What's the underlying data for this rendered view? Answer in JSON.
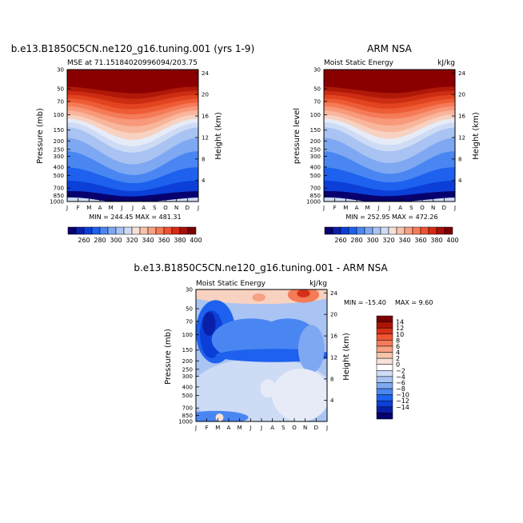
{
  "chart_data": [
    {
      "type": "heatmap",
      "title": "b.e13.B1850C5CN.ne120_g16.tuning.001 (yrs 1-9)",
      "subtitle_left": "MSE at 71.15184020996094/203.75",
      "ylabel": "Pressure (mb)",
      "ylabel_right": "Height (km)",
      "x_ticks": [
        "J",
        "F",
        "M",
        "A",
        "M",
        "J",
        "J",
        "A",
        "S",
        "O",
        "N",
        "D",
        "J"
      ],
      "p_ticks": [
        "30",
        "50",
        "70",
        "100",
        "150",
        "200",
        "250",
        "300",
        "400",
        "500",
        "700",
        "850",
        "1000"
      ],
      "p_values": [
        30,
        50,
        70,
        100,
        150,
        200,
        250,
        300,
        400,
        500,
        700,
        850,
        1000
      ],
      "km_ticks": [
        "24",
        "20",
        "16",
        "12",
        "8",
        "4"
      ],
      "km_values": [
        24,
        20,
        16,
        12,
        8,
        4
      ],
      "stats": "MIN = 244.45   MAX = 481.31",
      "min": 244.45,
      "max": 481.31
    },
    {
      "type": "heatmap",
      "title": "ARM NSA",
      "subtitle_left": "Moist Static Energy",
      "subtitle_right": "kJ/kg",
      "ylabel": "pressure  level",
      "ylabel_right": "Height (km)",
      "x_ticks": [
        "J",
        "F",
        "M",
        "A",
        "M",
        "J",
        "J",
        "A",
        "S",
        "O",
        "N",
        "D",
        "J"
      ],
      "p_ticks": [
        "30",
        "50",
        "70",
        "100",
        "150",
        "200",
        "250",
        "300",
        "400",
        "500",
        "700",
        "850",
        "1000"
      ],
      "p_values": [
        30,
        50,
        70,
        100,
        150,
        200,
        250,
        300,
        400,
        500,
        700,
        850,
        1000
      ],
      "km_ticks": [
        "24",
        "20",
        "16",
        "12",
        "8",
        "4"
      ],
      "km_values": [
        24,
        20,
        16,
        12,
        8,
        4
      ],
      "stats": "MIN = 252.95   MAX = 472.26",
      "min": 252.95,
      "max": 472.26
    },
    {
      "type": "heatmap",
      "title": "b.e13.B1850C5CN.ne120_g16.tuning.001  -  ARM NSA",
      "subtitle_left": "Moist Static Energy",
      "subtitle_right": "kJ/kg",
      "ylabel": "Pressure (mb)",
      "ylabel_right": "Height (km)",
      "x_ticks": [
        "J",
        "F",
        "M",
        "A",
        "M",
        "J",
        "J",
        "A",
        "S",
        "O",
        "N",
        "D",
        "J"
      ],
      "p_ticks": [
        "30",
        "50",
        "70",
        "100",
        "150",
        "200",
        "250",
        "300",
        "400",
        "500",
        "700",
        "850",
        "1000"
      ],
      "p_values": [
        30,
        50,
        70,
        100,
        150,
        200,
        250,
        300,
        400,
        500,
        700,
        850,
        1000
      ],
      "km_ticks": [
        "24",
        "20",
        "16",
        "12",
        "8",
        "4"
      ],
      "km_values": [
        24,
        20,
        16,
        12,
        8,
        4
      ],
      "stats_min": "MIN = -15.40",
      "stats_max": "MAX =    9.60",
      "min": -15.4,
      "max": 9.6
    }
  ],
  "colorbar_abs": {
    "labels": [
      "260",
      "280",
      "300",
      "320",
      "340",
      "360",
      "380",
      "400"
    ],
    "colors": [
      "#08006e",
      "#0a1fa8",
      "#0b3fd8",
      "#1d61ee",
      "#4a86f2",
      "#7fa8f2",
      "#a9c3f2",
      "#cddbf5",
      "#f5e0d8",
      "#f7c2ab",
      "#f7a083",
      "#f57b58",
      "#ee5232",
      "#d62a12",
      "#a80f08",
      "#7a0000"
    ]
  },
  "colorbar_diff": {
    "labels": [
      "14",
      "12",
      "10",
      "8",
      "6",
      "4",
      "2",
      "0",
      "−2",
      "−4",
      "−6",
      "−8",
      "−10",
      "−12",
      "−14"
    ],
    "colors": [
      "#7a0000",
      "#ad1408",
      "#d63018",
      "#ef5535",
      "#f57b58",
      "#f7a083",
      "#f7c2ab",
      "#f8e2d8",
      "#ffffff",
      "#cfdcf5",
      "#a9c3f2",
      "#7fa8f2",
      "#4a86f2",
      "#1d61ee",
      "#0b3fd8",
      "#0a1fa8",
      "#08006e"
    ]
  }
}
